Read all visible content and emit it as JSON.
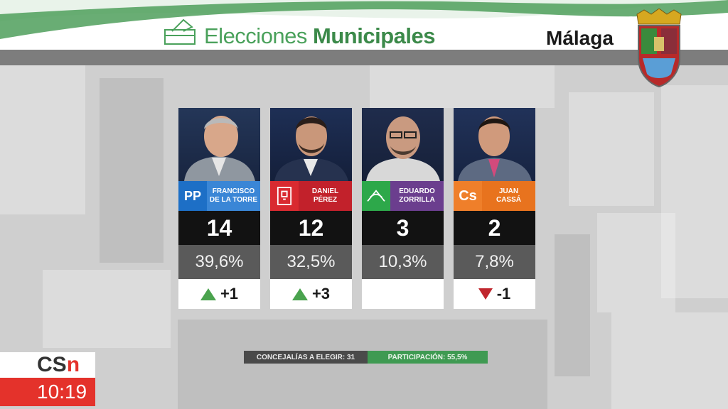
{
  "header": {
    "title_light": "Elecciones",
    "title_bold": "Municipales",
    "city": "Málaga",
    "accent_color": "#4aa15b"
  },
  "candidates": [
    {
      "name_line1": "FRANCISCO",
      "name_line2": "DE LA TORRE",
      "party_logo": "pp-logo",
      "party_label": "PP",
      "party_color": "#1d6fc6",
      "seats": "14",
      "percent": "39,6%",
      "change": "+1",
      "trend": "up"
    },
    {
      "name_line1": "DANIEL",
      "name_line2": "PÉREZ",
      "party_logo": "psoe-logo",
      "party_label": "",
      "party_color": "#c2212b",
      "seats": "12",
      "percent": "32,5%",
      "change": "+3",
      "trend": "up"
    },
    {
      "name_line1": "EDUARDO",
      "name_line2": "ZORRILLA",
      "party_logo": "adelante-logo",
      "party_label": "",
      "party_color": "#6b3e8e",
      "seats": "3",
      "percent": "10,3%",
      "change": "",
      "trend": "none"
    },
    {
      "name_line1": "JUAN",
      "name_line2": "CASSÁ",
      "party_logo": "cs-logo",
      "party_label": "Cs",
      "party_color": "#e8731e",
      "seats": "2",
      "percent": "7,8%",
      "change": "-1",
      "trend": "down"
    }
  ],
  "info": {
    "seats_label": "CONCEJALÍAS A ELEGIR: 31",
    "participation_label": "PARTICIPACIÓN: 55,5%"
  },
  "channel": {
    "logo_text": "CS",
    "logo_accent": "n",
    "time": "10:19"
  }
}
